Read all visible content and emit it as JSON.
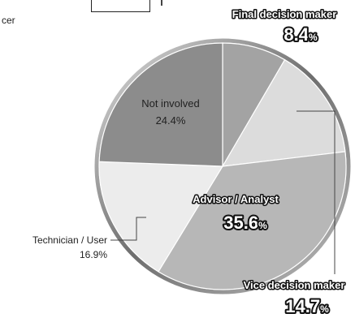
{
  "page": {
    "top_left_fragment": "cer"
  },
  "chart_data": {
    "type": "pie",
    "title": "",
    "slices": [
      {
        "label": "Final decision maker",
        "value": 8.4,
        "display": "8.4",
        "unit": "%",
        "color": "#a3a3a3"
      },
      {
        "label": "Vice decision maker",
        "value": 14.7,
        "display": "14.7",
        "unit": "%",
        "color": "#dcdcdc"
      },
      {
        "label": "Advisor / Analyst",
        "value": 35.6,
        "display": "35.6",
        "unit": "%",
        "color": "#b7b7b7"
      },
      {
        "label": "Technician / User",
        "value": 16.9,
        "display": "16.9%",
        "unit": "%",
        "color": "#ececec"
      },
      {
        "label": "Not involved",
        "value": 24.4,
        "display": "24.4%",
        "unit": "%",
        "color": "#8c8c8c"
      }
    ],
    "start_angle_deg": 0,
    "direction": "clockwise"
  }
}
